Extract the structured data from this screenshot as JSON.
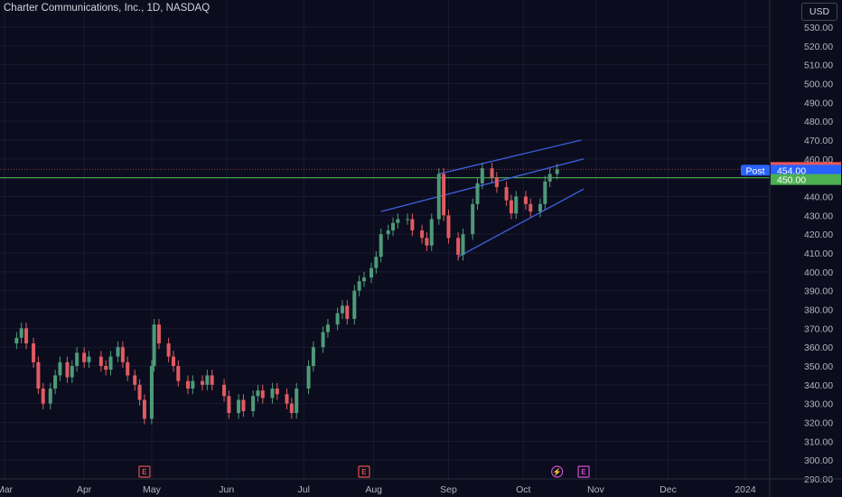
{
  "header": {
    "symbol_title": "Charter Communications, Inc., 1D, NASDAQ",
    "currency_button": "USD"
  },
  "colors": {
    "background": "#0b0d1e",
    "up": "#4e9a78",
    "down": "#e05b62",
    "trendline": "#3e5fe0",
    "support_line": "#4caf50",
    "post_tag": "#2962ff",
    "last_tag": "#f05656",
    "level_tag": "#4caf50",
    "earnings": "#e0504b",
    "event": "#d44bd0"
  },
  "chart_data": {
    "type": "candlestick",
    "title": "Charter Communications, Inc., 1D, NASDAQ",
    "currency": "USD",
    "ylim": [
      290,
      535
    ],
    "y_ticks": [
      "290.00",
      "300.00",
      "310.00",
      "320.00",
      "330.00",
      "340.00",
      "350.00",
      "360.00",
      "370.00",
      "380.00",
      "390.00",
      "400.00",
      "410.00",
      "420.00",
      "430.00",
      "440.00",
      "450.00",
      "460.00",
      "470.00",
      "480.00",
      "490.00",
      "500.00",
      "510.00",
      "520.00",
      "530.00"
    ],
    "x_ticks": [
      {
        "label": "Mar",
        "date": "2023-03-01"
      },
      {
        "label": "Apr",
        "date": "2023-04-03"
      },
      {
        "label": "May",
        "date": "2023-05-01"
      },
      {
        "label": "Jun",
        "date": "2023-06-01"
      },
      {
        "label": "Jul",
        "date": "2023-07-03"
      },
      {
        "label": "Aug",
        "date": "2023-08-01"
      },
      {
        "label": "Sep",
        "date": "2023-09-01"
      },
      {
        "label": "Oct",
        "date": "2023-10-02"
      },
      {
        "label": "Nov",
        "date": "2023-11-01"
      },
      {
        "label": "Dec",
        "date": "2023-12-01"
      },
      {
        "label": "2024",
        "date": "2024-01-02"
      }
    ],
    "grid": true,
    "series": [
      {
        "date": "2023-03-06",
        "close": 365
      },
      {
        "date": "2023-03-08",
        "close": 370
      },
      {
        "date": "2023-03-10",
        "close": 362
      },
      {
        "date": "2023-03-13",
        "close": 352
      },
      {
        "date": "2023-03-15",
        "close": 338
      },
      {
        "date": "2023-03-17",
        "close": 330
      },
      {
        "date": "2023-03-20",
        "close": 338
      },
      {
        "date": "2023-03-22",
        "close": 345
      },
      {
        "date": "2023-03-24",
        "close": 352
      },
      {
        "date": "2023-03-27",
        "close": 344
      },
      {
        "date": "2023-03-29",
        "close": 350
      },
      {
        "date": "2023-03-31",
        "close": 357
      },
      {
        "date": "2023-04-03",
        "close": 352
      },
      {
        "date": "2023-04-05",
        "close": 355
      },
      {
        "date": "2023-04-10",
        "close": 350
      },
      {
        "date": "2023-04-12",
        "close": 348
      },
      {
        "date": "2023-04-14",
        "close": 355
      },
      {
        "date": "2023-04-17",
        "close": 360
      },
      {
        "date": "2023-04-19",
        "close": 352
      },
      {
        "date": "2023-04-21",
        "close": 345
      },
      {
        "date": "2023-04-24",
        "close": 340
      },
      {
        "date": "2023-04-26",
        "close": 332
      },
      {
        "date": "2023-04-28",
        "close": 322
      },
      {
        "date": "2023-05-01",
        "close": 350
      },
      {
        "date": "2023-05-02",
        "close": 372
      },
      {
        "date": "2023-05-04",
        "close": 362
      },
      {
        "date": "2023-05-08",
        "close": 355
      },
      {
        "date": "2023-05-10",
        "close": 350
      },
      {
        "date": "2023-05-12",
        "close": 342
      },
      {
        "date": "2023-05-16",
        "close": 338
      },
      {
        "date": "2023-05-18",
        "close": 342
      },
      {
        "date": "2023-05-22",
        "close": 340
      },
      {
        "date": "2023-05-24",
        "close": 345
      },
      {
        "date": "2023-05-26",
        "close": 340
      },
      {
        "date": "2023-05-31",
        "close": 334
      },
      {
        "date": "2023-06-02",
        "close": 325
      },
      {
        "date": "2023-06-06",
        "close": 332
      },
      {
        "date": "2023-06-08",
        "close": 326
      },
      {
        "date": "2023-06-12",
        "close": 334
      },
      {
        "date": "2023-06-14",
        "close": 337
      },
      {
        "date": "2023-06-16",
        "close": 333
      },
      {
        "date": "2023-06-20",
        "close": 338
      },
      {
        "date": "2023-06-22",
        "close": 335
      },
      {
        "date": "2023-06-26",
        "close": 330
      },
      {
        "date": "2023-06-28",
        "close": 325
      },
      {
        "date": "2023-06-30",
        "close": 338
      },
      {
        "date": "2023-07-05",
        "close": 350
      },
      {
        "date": "2023-07-07",
        "close": 360
      },
      {
        "date": "2023-07-11",
        "close": 368
      },
      {
        "date": "2023-07-13",
        "close": 372
      },
      {
        "date": "2023-07-17",
        "close": 378
      },
      {
        "date": "2023-07-19",
        "close": 382
      },
      {
        "date": "2023-07-21",
        "close": 375
      },
      {
        "date": "2023-07-24",
        "close": 390
      },
      {
        "date": "2023-07-26",
        "close": 395
      },
      {
        "date": "2023-07-28",
        "close": 397
      },
      {
        "date": "2023-07-31",
        "close": 402
      },
      {
        "date": "2023-08-02",
        "close": 408
      },
      {
        "date": "2023-08-04",
        "close": 420
      },
      {
        "date": "2023-08-07",
        "close": 422
      },
      {
        "date": "2023-08-09",
        "close": 426
      },
      {
        "date": "2023-08-11",
        "close": 428
      },
      {
        "date": "2023-08-15",
        "close": 428
      },
      {
        "date": "2023-08-17",
        "close": 422
      },
      {
        "date": "2023-08-21",
        "close": 418
      },
      {
        "date": "2023-08-23",
        "close": 414
      },
      {
        "date": "2023-08-25",
        "close": 428
      },
      {
        "date": "2023-08-28",
        "close": 452
      },
      {
        "date": "2023-08-30",
        "close": 430
      },
      {
        "date": "2023-09-01",
        "close": 418
      },
      {
        "date": "2023-09-05",
        "close": 409
      },
      {
        "date": "2023-09-07",
        "close": 420
      },
      {
        "date": "2023-09-11",
        "close": 436
      },
      {
        "date": "2023-09-13",
        "close": 447
      },
      {
        "date": "2023-09-15",
        "close": 455
      },
      {
        "date": "2023-09-19",
        "close": 450
      },
      {
        "date": "2023-09-21",
        "close": 445
      },
      {
        "date": "2023-09-25",
        "close": 438
      },
      {
        "date": "2023-09-27",
        "close": 431
      },
      {
        "date": "2023-09-29",
        "close": 440
      },
      {
        "date": "2023-10-03",
        "close": 436
      },
      {
        "date": "2023-10-05",
        "close": 432
      },
      {
        "date": "2023-10-09",
        "close": 436
      },
      {
        "date": "2023-10-11",
        "close": 448
      },
      {
        "date": "2023-10-13",
        "close": 452
      },
      {
        "date": "2023-10-16",
        "close": 454.45
      }
    ],
    "price_labels": [
      {
        "label": "454.45",
        "value": 454.45,
        "kind": "last"
      },
      {
        "label": "454.00",
        "value": 454.0,
        "kind": "post",
        "tag": "Post"
      },
      {
        "label": "450.00",
        "value": 450.0,
        "kind": "level"
      }
    ],
    "drawings": {
      "horizontal_line": 450.0,
      "wedge_lines": [
        {
          "from": {
            "date": "2023-08-28",
            "value": 452
          },
          "to": {
            "date": "2023-10-26",
            "value": 470
          }
        },
        {
          "from": {
            "date": "2023-08-04",
            "value": 432
          },
          "to": {
            "date": "2023-10-27",
            "value": 460
          }
        },
        {
          "from": {
            "date": "2023-09-05",
            "value": 408
          },
          "to": {
            "date": "2023-10-27",
            "value": 444
          }
        }
      ]
    },
    "events": [
      {
        "label": "E",
        "date": "2023-04-28",
        "kind": "earnings"
      },
      {
        "label": "E",
        "date": "2023-07-28",
        "kind": "earnings"
      },
      {
        "label": "⚡",
        "date": "2023-10-16",
        "kind": "dividend"
      },
      {
        "label": "E",
        "date": "2023-10-27",
        "kind": "earnings"
      }
    ]
  }
}
